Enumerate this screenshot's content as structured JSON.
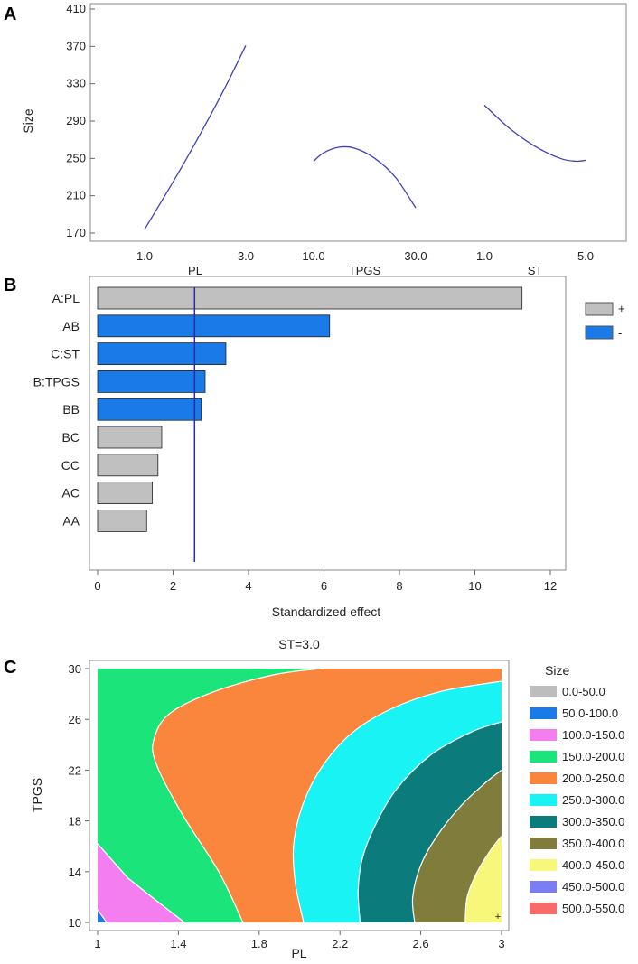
{
  "chart_data": [
    {
      "panel": "A",
      "type": "line",
      "title": "",
      "ylabel": "Size",
      "ylim": [
        170,
        410
      ],
      "yticks": [
        "170",
        "210",
        "250",
        "290",
        "330",
        "370",
        "410"
      ],
      "factors": [
        {
          "name": "PL",
          "low": "1.0",
          "high": "3.0",
          "x": [
            0,
            0.2,
            0.4,
            0.6,
            0.8,
            1.0
          ],
          "y": [
            174,
            210,
            247,
            286,
            327,
            371
          ]
        },
        {
          "name": "TPGS",
          "low": "10.0",
          "high": "30.0",
          "x": [
            0,
            0.1,
            0.25,
            0.4,
            0.6,
            0.8,
            1.0
          ],
          "y": [
            247,
            256,
            262,
            261,
            250,
            230,
            197
          ]
        },
        {
          "name": "ST",
          "low": "1.0",
          "high": "5.0",
          "x": [
            0,
            0.25,
            0.5,
            0.75,
            0.9,
            1.0
          ],
          "y": [
            307,
            282,
            263,
            250,
            247,
            248
          ]
        }
      ]
    },
    {
      "panel": "B",
      "type": "bar",
      "title": "",
      "xlabel": "Standardized effect",
      "xlim": [
        0,
        12.5
      ],
      "xticks": [
        "0",
        "2",
        "4",
        "6",
        "8",
        "10",
        "12"
      ],
      "categories": [
        "A:PL",
        "AB",
        "C:ST",
        "B:TPGS",
        "BB",
        "BC",
        "CC",
        "AC",
        "AA"
      ],
      "values": [
        11.25,
        6.15,
        3.4,
        2.85,
        2.75,
        1.7,
        1.6,
        1.45,
        1.3
      ],
      "signs": [
        "+",
        "-",
        "-",
        "-",
        "-",
        "+",
        "+",
        "+",
        "+"
      ],
      "reference_line": 2.57,
      "legend": [
        {
          "label": "+",
          "color": "#c0c0c0"
        },
        {
          "label": "-",
          "color": "#1a7ae8"
        }
      ]
    },
    {
      "panel": "C",
      "type": "heatmap",
      "title": "ST=3.0",
      "xlabel": "PL",
      "ylabel": "TPGS",
      "xlim": [
        1,
        3
      ],
      "ylim": [
        10,
        30
      ],
      "xticks": [
        "1",
        "1.4",
        "1.8",
        "2.2",
        "2.6",
        "3"
      ],
      "yticks": [
        "10",
        "14",
        "18",
        "22",
        "26",
        "30"
      ],
      "legend_title": "Size",
      "levels": [
        {
          "label": "0.0-50.0",
          "color": "#bdbdbd"
        },
        {
          "label": "50.0-100.0",
          "color": "#1a7ae8"
        },
        {
          "label": "100.0-150.0",
          "color": "#f47ef0"
        },
        {
          "label": "150.0-200.0",
          "color": "#1be57a"
        },
        {
          "label": "200.0-250.0",
          "color": "#fa853c"
        },
        {
          "label": "250.0-300.0",
          "color": "#19f3f3"
        },
        {
          "label": "300.0-350.0",
          "color": "#0b7b7b"
        },
        {
          "label": "350.0-400.0",
          "color": "#807d3c"
        },
        {
          "label": "400.0-450.0",
          "color": "#f7f77a"
        },
        {
          "label": "450.0-500.0",
          "color": "#7d7df2"
        },
        {
          "label": "500.0-550.0",
          "color": "#f76b6b"
        }
      ],
      "boundaries": [
        {
          "level": 100,
          "points": [
            [
              1.0,
              11.0
            ],
            [
              1.045,
              10.0
            ]
          ]
        },
        {
          "level": 150,
          "points": [
            [
              1.0,
              16.2
            ],
            [
              1.15,
              13.5
            ],
            [
              1.3,
              11.6
            ],
            [
              1.43,
              10.0
            ]
          ]
        },
        {
          "level": 200,
          "points": [
            [
              1.72,
              10.0
            ],
            [
              1.6,
              14.0
            ],
            [
              1.42,
              18.5
            ],
            [
              1.29,
              22.5
            ],
            [
              1.28,
              24.5
            ],
            [
              1.36,
              26.5
            ],
            [
              1.58,
              28.2
            ],
            [
              1.87,
              29.5
            ],
            [
              2.1,
              30.0
            ]
          ]
        },
        {
          "level": 250,
          "points": [
            [
              2.02,
              10.0
            ],
            [
              1.98,
              13.0
            ],
            [
              1.97,
              16.0
            ],
            [
              2.01,
              19.0
            ],
            [
              2.1,
              22.0
            ],
            [
              2.25,
              24.8
            ],
            [
              2.45,
              26.8
            ],
            [
              2.7,
              28.2
            ],
            [
              3.0,
              29.0
            ]
          ]
        },
        {
          "level": 300,
          "points": [
            [
              2.3,
              10.0
            ],
            [
              2.29,
              12.5
            ],
            [
              2.31,
              15.0
            ],
            [
              2.37,
              17.5
            ],
            [
              2.48,
              20.5
            ],
            [
              2.65,
              23.2
            ],
            [
              2.85,
              25.0
            ],
            [
              3.0,
              25.8
            ]
          ]
        },
        {
          "level": 350,
          "points": [
            [
              2.57,
              10.0
            ],
            [
              2.56,
              12.0
            ],
            [
              2.6,
              14.5
            ],
            [
              2.68,
              16.8
            ],
            [
              2.8,
              19.2
            ],
            [
              2.92,
              21.0
            ],
            [
              3.0,
              22.0
            ]
          ]
        },
        {
          "level": 400,
          "points": [
            [
              2.82,
              10.0
            ],
            [
              2.83,
              12.0
            ],
            [
              2.88,
              14.0
            ],
            [
              2.95,
              15.8
            ],
            [
              3.0,
              16.8
            ]
          ]
        }
      ],
      "marker": "+"
    }
  ]
}
